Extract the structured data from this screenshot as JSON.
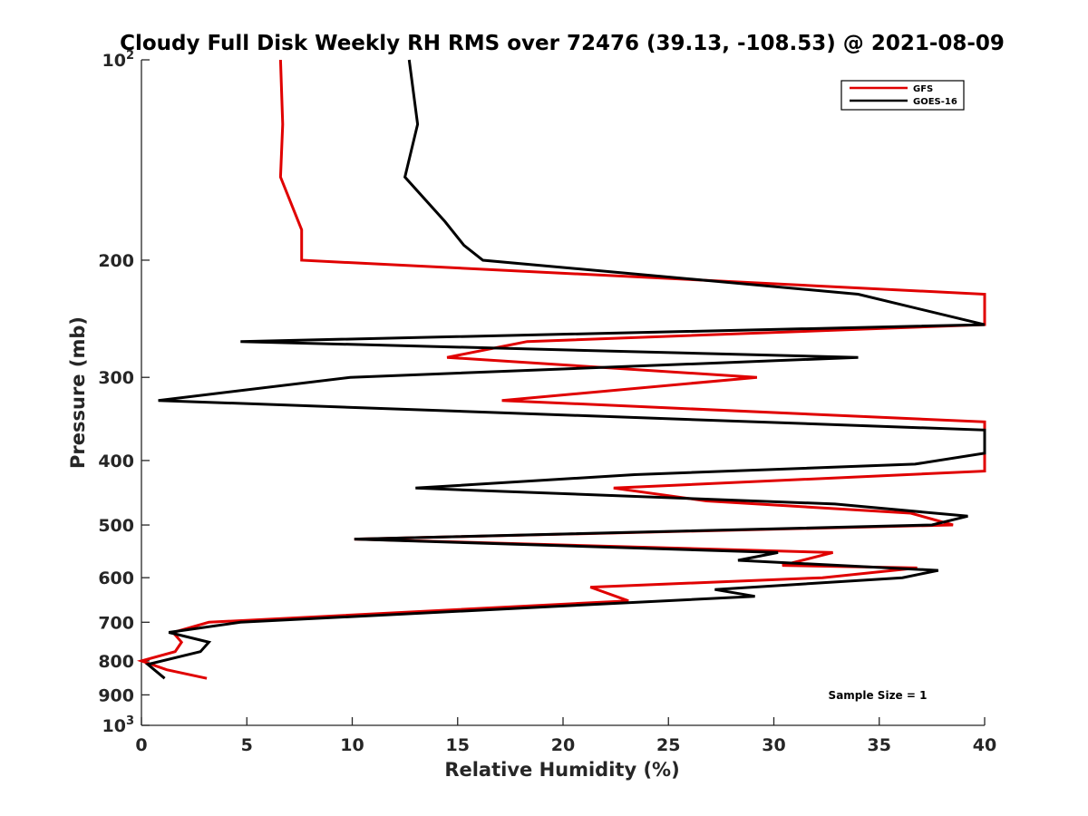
{
  "chart_data": {
    "type": "line",
    "title": "Cloudy Full Disk Weekly RH RMS over 72476 (39.13, -108.53) @ 2021-08-09",
    "xlabel": "Relative Humidity (%)",
    "ylabel": "Pressure (mb)",
    "xlim": [
      0,
      40
    ],
    "ylim": [
      100,
      1000
    ],
    "yscale": "log",
    "y_reversed": true,
    "grid": false,
    "legend_position": "top-right",
    "x_ticks": [
      "0",
      "5",
      "10",
      "15",
      "20",
      "25",
      "30",
      "35",
      "40"
    ],
    "y_ticks": [
      {
        "value": 100,
        "base": "10",
        "exp": "2"
      },
      {
        "value": 200,
        "label": "200"
      },
      {
        "value": 300,
        "label": "300"
      },
      {
        "value": 400,
        "label": "400"
      },
      {
        "value": 500,
        "label": "500"
      },
      {
        "value": 600,
        "label": "600"
      },
      {
        "value": 700,
        "label": "700"
      },
      {
        "value": 800,
        "label": "800"
      },
      {
        "value": 900,
        "label": "900"
      },
      {
        "value": 1000,
        "base": "10",
        "exp": "3"
      }
    ],
    "series": [
      {
        "name": "GFS",
        "color": "#e00000",
        "points": [
          [
            6.6,
            100
          ],
          [
            6.7,
            125
          ],
          [
            6.6,
            150
          ],
          [
            7.6,
            180
          ],
          [
            7.6,
            200
          ],
          [
            40,
            225
          ],
          [
            40,
            250
          ],
          [
            18.3,
            265
          ],
          [
            14.5,
            280
          ],
          [
            29.2,
            300
          ],
          [
            17.1,
            325
          ],
          [
            40,
            350
          ],
          [
            40,
            415
          ],
          [
            22.4,
            440
          ],
          [
            26.8,
            460
          ],
          [
            36.5,
            480
          ],
          [
            38.5,
            500
          ],
          [
            10.1,
            525
          ],
          [
            32.8,
            550
          ],
          [
            30.4,
            575
          ],
          [
            36.8,
            580
          ],
          [
            32.3,
            600
          ],
          [
            21.3,
            620
          ],
          [
            23.1,
            650
          ],
          [
            3.2,
            700
          ],
          [
            1.5,
            725
          ],
          [
            1.9,
            750
          ],
          [
            1.6,
            775
          ],
          [
            0,
            800
          ],
          [
            1.2,
            825
          ],
          [
            3.1,
            850
          ]
        ]
      },
      {
        "name": "GOES-16",
        "color": "#000000",
        "points": [
          [
            12.7,
            100
          ],
          [
            13.1,
            125
          ],
          [
            12.5,
            150
          ],
          [
            14.4,
            175
          ],
          [
            15.3,
            190
          ],
          [
            16.2,
            200
          ],
          [
            34.0,
            225
          ],
          [
            40,
            250
          ],
          [
            4.7,
            265
          ],
          [
            34.0,
            280
          ],
          [
            9.9,
            300
          ],
          [
            0.8,
            325
          ],
          [
            40,
            360
          ],
          [
            40,
            390
          ],
          [
            36.7,
            405
          ],
          [
            23.4,
            420
          ],
          [
            13.0,
            440
          ],
          [
            32.9,
            465
          ],
          [
            39.2,
            485
          ],
          [
            37.5,
            500
          ],
          [
            10.1,
            525
          ],
          [
            30.2,
            550
          ],
          [
            28.3,
            565
          ],
          [
            37.8,
            585
          ],
          [
            36.1,
            600
          ],
          [
            27.2,
            625
          ],
          [
            29.1,
            640
          ],
          [
            4.7,
            700
          ],
          [
            1.3,
            725
          ],
          [
            3.2,
            750
          ],
          [
            2.8,
            775
          ],
          [
            0.3,
            810
          ],
          [
            1.1,
            850
          ]
        ]
      }
    ],
    "legend": [
      "GFS",
      "GOES-16"
    ],
    "annotation": "Sample Size = 1"
  }
}
